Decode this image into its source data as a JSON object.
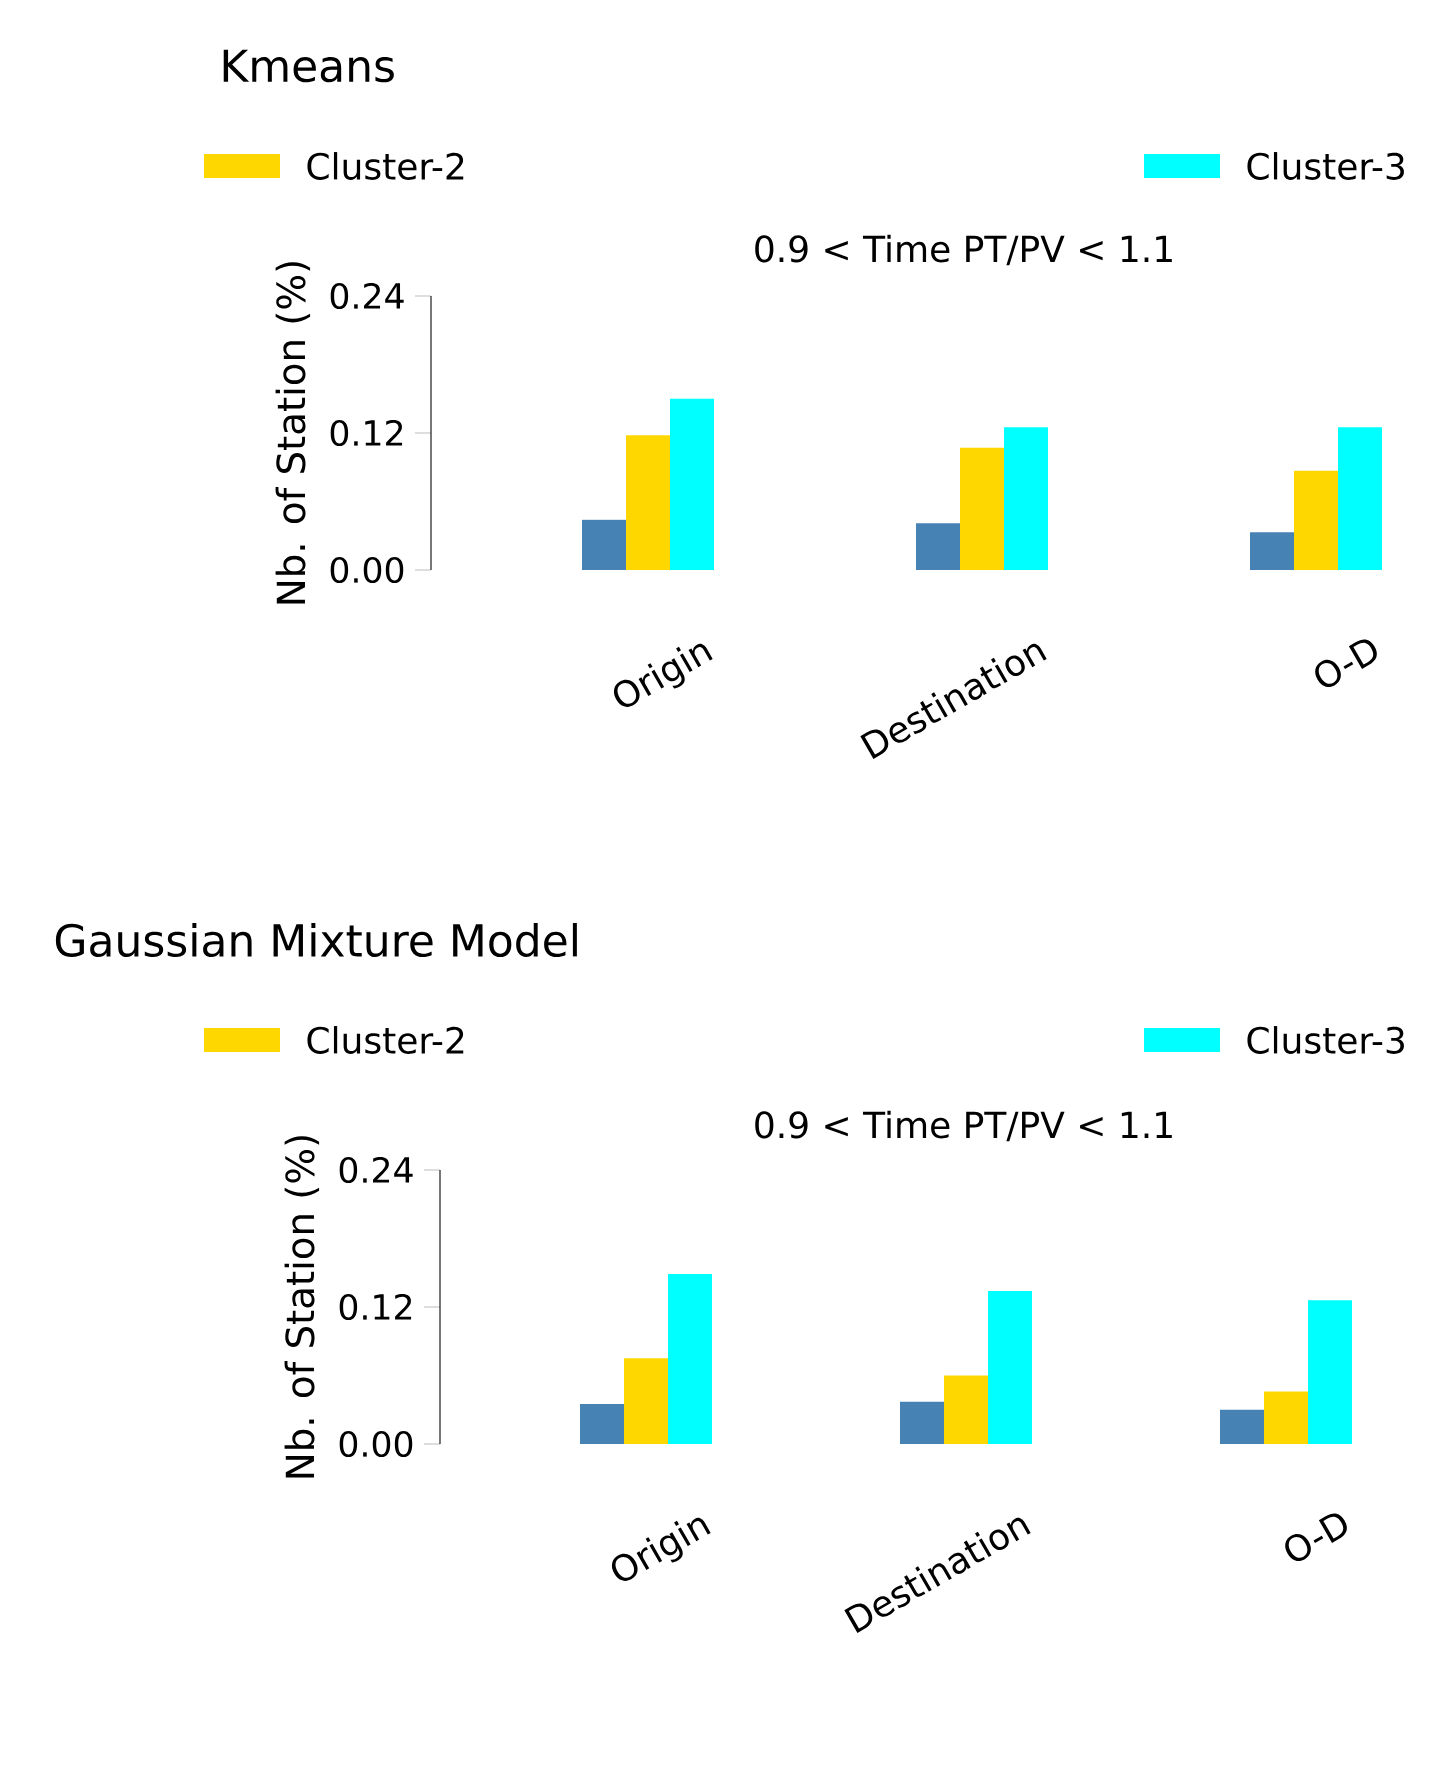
{
  "chart_data": [
    {
      "type": "bar",
      "title": "Kmeans",
      "subtitle": "0.9 < Time PT/PV < 1.1",
      "ylabel": "Nb. of Station (%)",
      "categories": [
        "Origin",
        "Destination",
        "O-D"
      ],
      "series": [
        {
          "color": "#4682b4",
          "values": [
            0.044,
            0.041,
            0.033
          ]
        },
        {
          "name": "Cluster-2",
          "color": "#ffd700",
          "values": [
            0.118,
            0.107,
            0.087
          ]
        },
        {
          "name": "Cluster-3",
          "color": "#00ffff",
          "values": [
            0.15,
            0.125,
            0.125
          ]
        }
      ],
      "ylim": [
        0,
        0.24
      ],
      "yticks": [
        {
          "value": 0,
          "label": "0.00"
        },
        {
          "value": 0.12,
          "label": "0.12"
        },
        {
          "value": 0.24,
          "label": "0.24"
        }
      ],
      "legend": "top"
    },
    {
      "type": "bar",
      "title": "Gaussian Mixture Model",
      "subtitle": "0.9 < Time PT/PV < 1.1",
      "ylabel": "Nb. of Station (%)",
      "categories": [
        "Origin",
        "Destination",
        "O-D"
      ],
      "series": [
        {
          "color": "#4682b4",
          "values": [
            0.035,
            0.037,
            0.03
          ]
        },
        {
          "name": "Cluster-2",
          "color": "#ffd700",
          "values": [
            0.075,
            0.06,
            0.046
          ]
        },
        {
          "name": "Cluster-3",
          "color": "#00ffff",
          "values": [
            0.149,
            0.134,
            0.126
          ]
        }
      ],
      "ylim": [
        0,
        0.24
      ],
      "yticks": [
        {
          "value": 0,
          "label": "0.00"
        },
        {
          "value": 0.12,
          "label": "0.12"
        },
        {
          "value": 0.24,
          "label": "0.24"
        }
      ],
      "legend": "top"
    }
  ]
}
